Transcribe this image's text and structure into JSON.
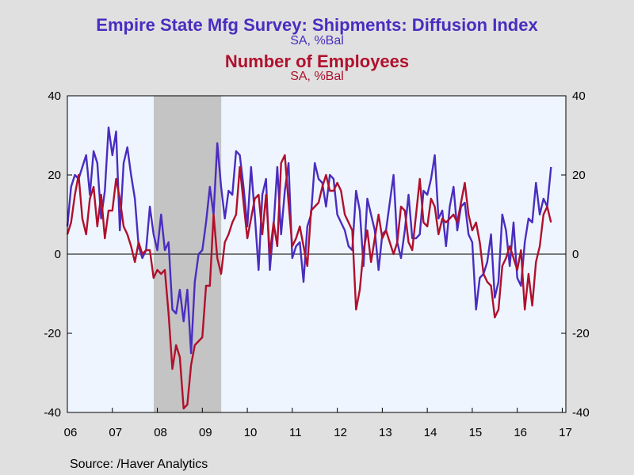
{
  "header": {
    "title1": "Empire State Mfg Survey: Shipments: Diffusion Index",
    "subtitle1": "SA, %Bal",
    "title2": "Number of Employees",
    "subtitle2": "SA, %Bal"
  },
  "footer": {
    "source": "Source:  /Haver Analytics"
  },
  "colors": {
    "series1": "#4a2dbf",
    "series2": "#b0102c",
    "plot_bg": "#eef5ff",
    "page_bg": "#e0e0e0",
    "recession": "#c4c4c4",
    "title1": "#4a2dbf",
    "title2": "#b0102c"
  },
  "chart_data": {
    "type": "line",
    "x_tick_labels": [
      "06",
      "07",
      "08",
      "09",
      "10",
      "11",
      "12",
      "13",
      "14",
      "15",
      "16",
      "17"
    ],
    "y_tick_labels": [
      "40",
      "20",
      "0",
      "-20",
      "-40"
    ],
    "ylim": [
      -40,
      40
    ],
    "y_ticks": [
      40,
      20,
      0,
      -20,
      -40
    ],
    "xlim": [
      2006.0,
      2017.08
    ],
    "zero_line": true,
    "recession_shading": [
      [
        2007.92,
        2009.42
      ]
    ],
    "series": [
      {
        "name": "Empire State Mfg Survey: Shipments: Diffusion Index",
        "color": "#4a2dbf",
        "start": 2006.0,
        "step": 0.0833333,
        "values": [
          7,
          17,
          20,
          19,
          22,
          25,
          15,
          26,
          23,
          9,
          16,
          32,
          25,
          31,
          6,
          23,
          27,
          20,
          14,
          2,
          -1,
          1,
          12,
          5,
          1,
          10,
          1,
          3,
          -14,
          -15,
          -9,
          -17,
          -9,
          -25,
          -7,
          0,
          1,
          8,
          17,
          10,
          28,
          17,
          9,
          16,
          15,
          26,
          25,
          17,
          7,
          22,
          10,
          -4,
          15,
          19,
          -4,
          7,
          22,
          5,
          16,
          23,
          -1,
          2,
          3,
          -7,
          7,
          10,
          23,
          19,
          18,
          12,
          20,
          19,
          10,
          8,
          6,
          2,
          1,
          16,
          11,
          -3,
          14,
          10,
          6,
          -4,
          5,
          6,
          13,
          20,
          3,
          -1,
          6,
          15,
          4,
          4,
          5,
          16,
          15,
          19,
          25,
          9,
          11,
          2,
          12,
          17,
          6,
          12,
          13,
          5,
          3,
          -14,
          -6,
          -5,
          -2,
          5,
          -11,
          -7,
          10,
          6,
          -3,
          8,
          -6,
          -8,
          3,
          9,
          8,
          18,
          10,
          14,
          12,
          22
        ]
      },
      {
        "name": "Number of Employees",
        "color": "#b0102c",
        "start": 2006.0,
        "step": 0.0833333,
        "values": [
          5,
          8,
          15,
          20,
          9,
          5,
          14,
          17,
          7,
          15,
          4,
          11,
          11,
          19,
          14,
          7,
          5,
          2,
          -2,
          3,
          0,
          1,
          1,
          -6,
          -4,
          -5,
          -4,
          -15,
          -29,
          -23,
          -26,
          -39,
          -38,
          -28,
          -23,
          -22,
          -21,
          -8,
          -8,
          10,
          -1,
          -5,
          3,
          5,
          8,
          10,
          22,
          13,
          4,
          9,
          14,
          15,
          5,
          15,
          0,
          8,
          2,
          23,
          25,
          13,
          2,
          4,
          7,
          2,
          -3,
          11,
          12,
          13,
          17,
          20,
          16,
          16,
          18,
          16,
          10,
          8,
          6,
          -14,
          -9,
          1,
          6,
          -2,
          4,
          10,
          4,
          6,
          3,
          0,
          3,
          12,
          11,
          3,
          1,
          10,
          19,
          8,
          7,
          14,
          12,
          5,
          9,
          8,
          9,
          10,
          8,
          13,
          18,
          10,
          6,
          8,
          3,
          -5,
          -7,
          -8,
          -16,
          -14,
          -3,
          -1,
          2,
          -1,
          -4,
          1,
          -14,
          -5,
          -13,
          -2,
          2,
          10,
          12,
          8
        ]
      }
    ]
  }
}
